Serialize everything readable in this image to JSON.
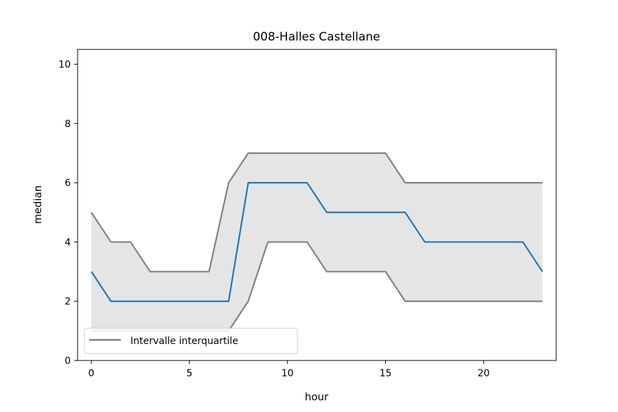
{
  "chart_data": {
    "type": "line",
    "title": "008-Halles Castellane",
    "xlabel": "hour",
    "ylabel": "median",
    "xlim": [
      -0.7,
      23.7
    ],
    "ylim": [
      0,
      10.5
    ],
    "x_ticks": [
      0,
      5,
      10,
      15,
      20
    ],
    "y_ticks": [
      0,
      2,
      4,
      6,
      8,
      10
    ],
    "x": [
      0,
      1,
      2,
      3,
      4,
      5,
      6,
      7,
      8,
      9,
      10,
      11,
      12,
      13,
      14,
      15,
      16,
      17,
      18,
      19,
      20,
      21,
      22,
      23
    ],
    "series": [
      {
        "role": "median",
        "color": "#1f77b4",
        "values": [
          3,
          2,
          2,
          2,
          2,
          2,
          2,
          2,
          6,
          6,
          6,
          6,
          5,
          5,
          5,
          5,
          5,
          4,
          4,
          4,
          4,
          4,
          4,
          3
        ]
      },
      {
        "role": "q3",
        "name": "Intervalle interquartile",
        "color": "#808080",
        "values": [
          5,
          4,
          4,
          3,
          3,
          3,
          3,
          6,
          7,
          7,
          7,
          7,
          7,
          7,
          7,
          7,
          6,
          6,
          6,
          6,
          6,
          6,
          6,
          6
        ]
      },
      {
        "role": "q1",
        "color": "#808080",
        "values": [
          1,
          1,
          1,
          1,
          1,
          1,
          1,
          1,
          2,
          4,
          4,
          4,
          3,
          3,
          3,
          3,
          2,
          2,
          2,
          2,
          2,
          2,
          2,
          2
        ]
      }
    ],
    "band_fill": "#e5e5e5",
    "grid": false,
    "legend": {
      "position": "lower-left",
      "entries": [
        "Intervalle interquartile"
      ]
    }
  }
}
